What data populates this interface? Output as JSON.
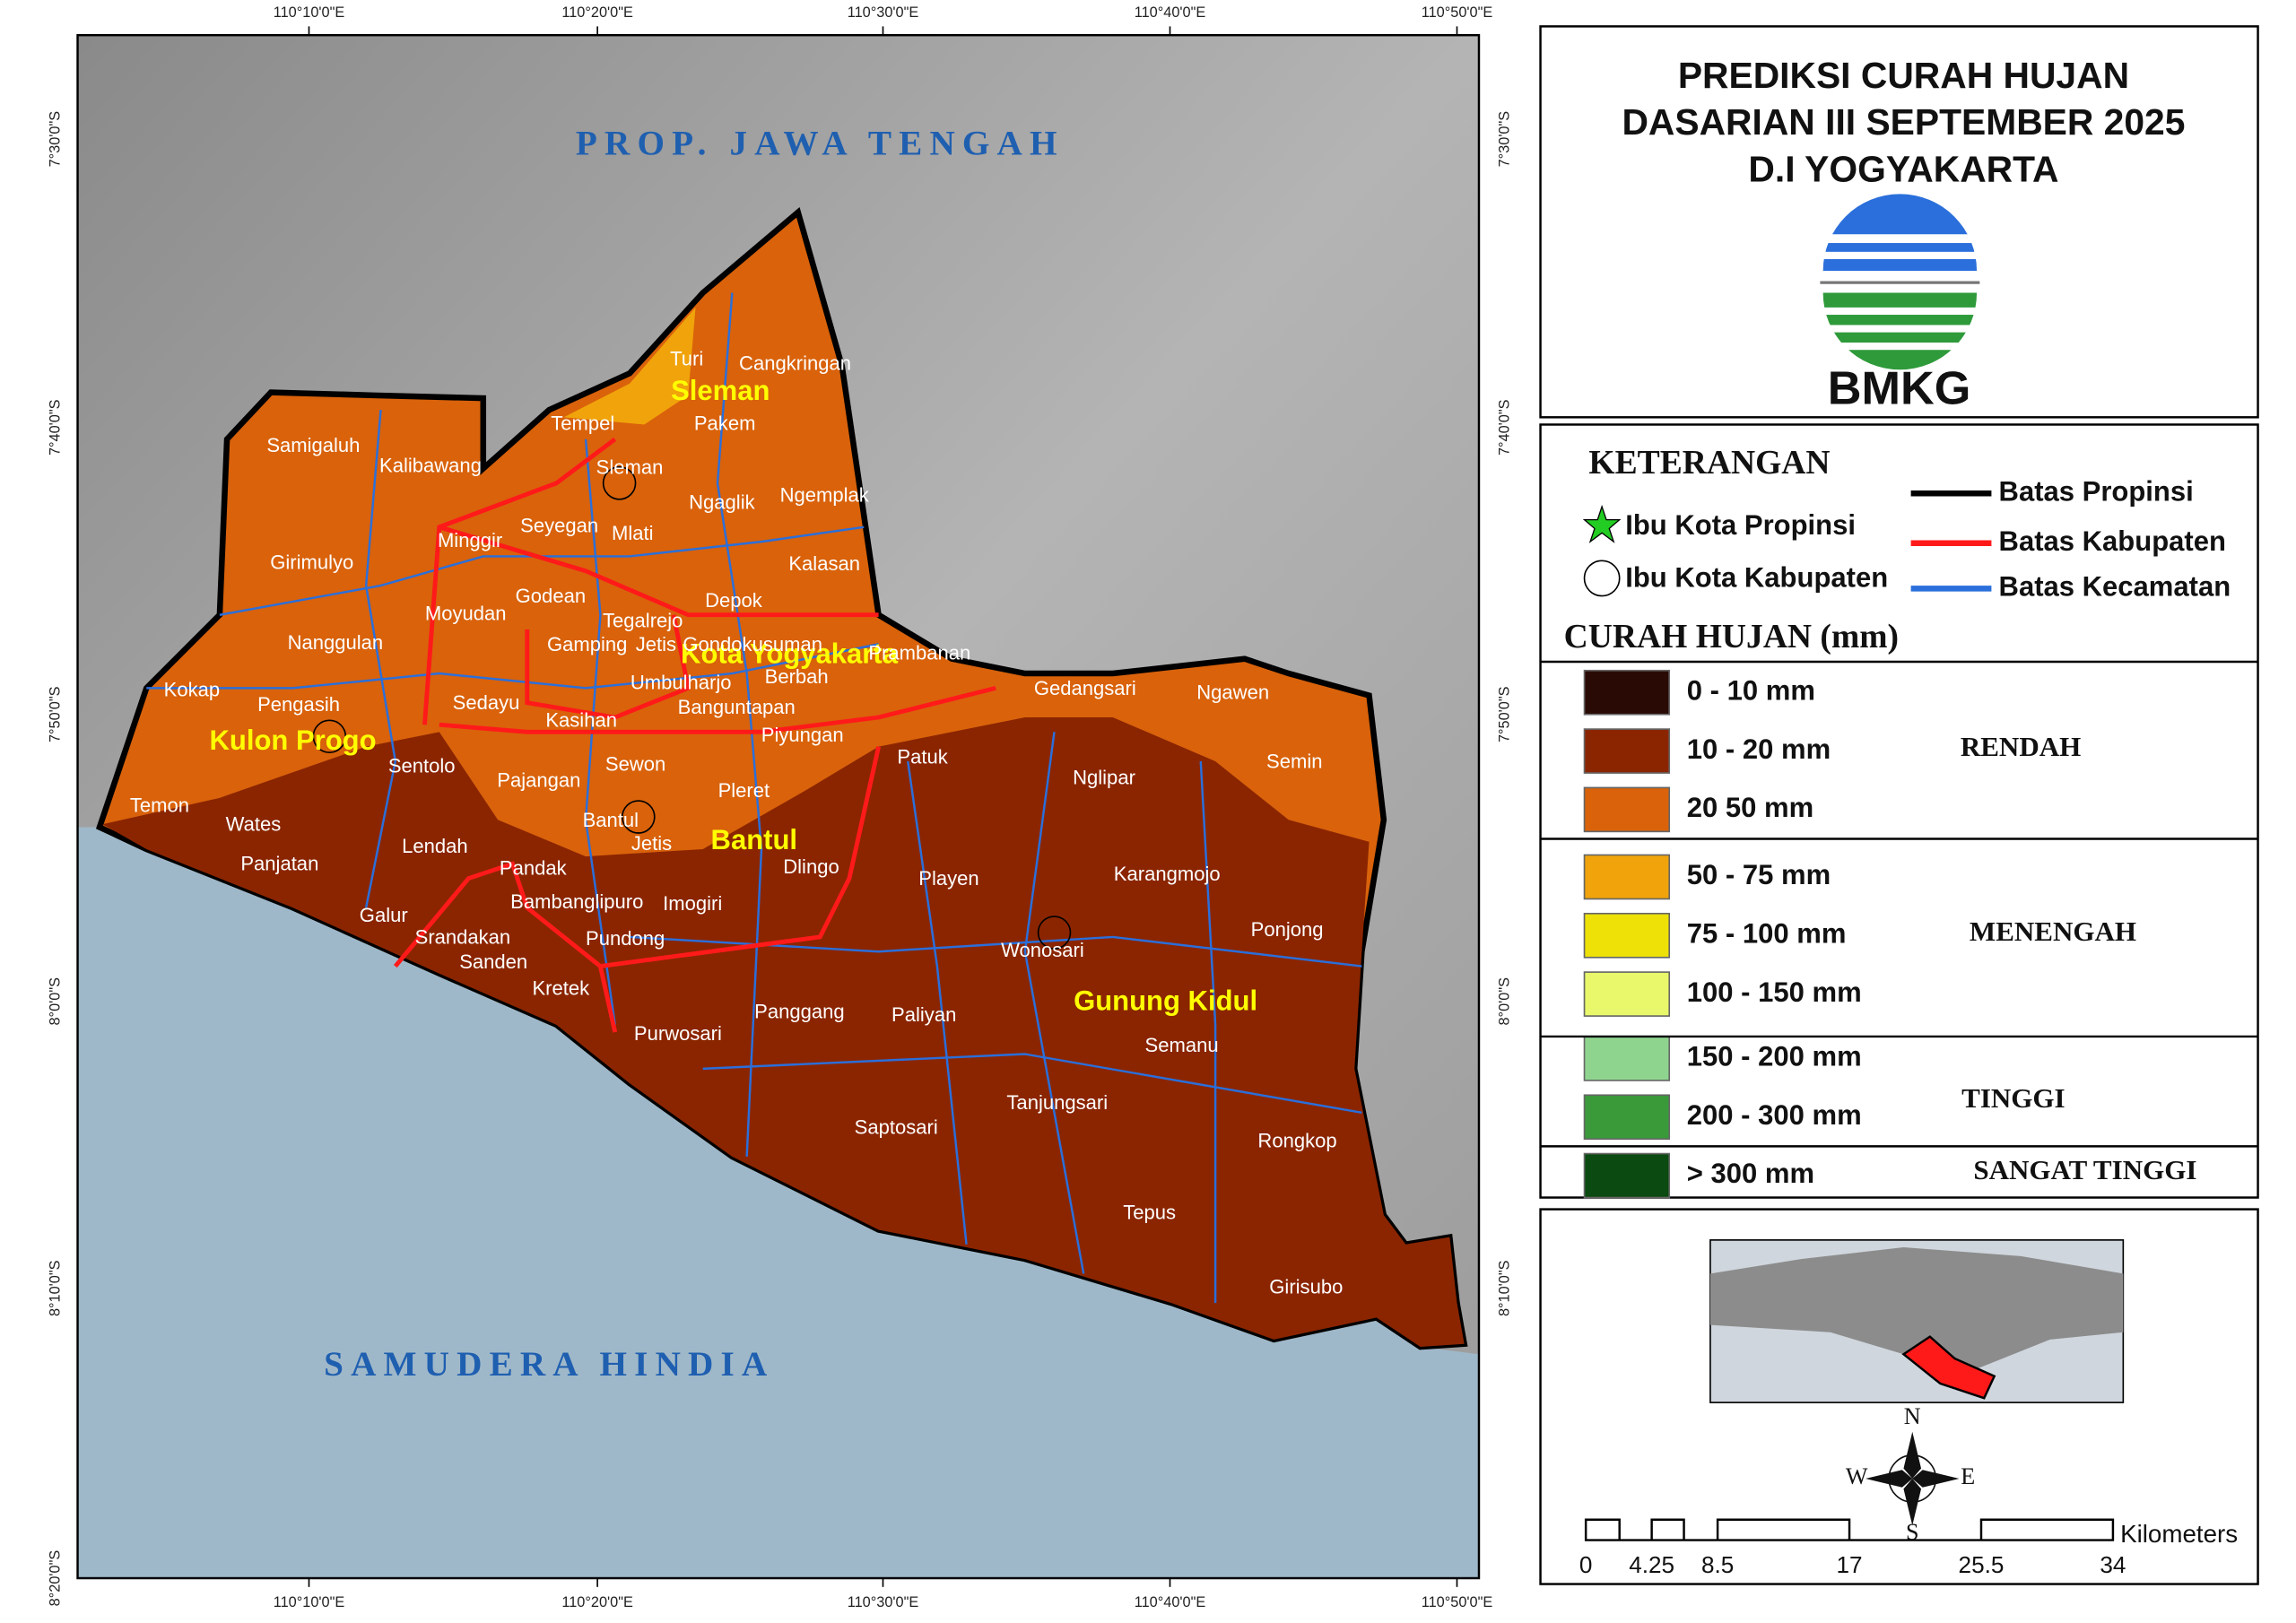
{
  "map": {
    "title_lines": [
      "PREDIKSI CURAH HUJAN",
      "DASARIAN III SEPTEMBER 2025",
      "D.I YOGYAKARTA"
    ],
    "logo_text": "BMKG",
    "region_labels": [
      "PROP. JAWA TENGAH",
      "SAMUDERA HINDIA"
    ],
    "regency_labels": [
      "Sleman",
      "Kota Yogyakarta",
      "Kulon Progo",
      "Bantul",
      "Gunung Kidul"
    ],
    "districts": [
      "Samigaluh",
      "Kalibawang",
      "Girimulyo",
      "Nanggulan",
      "Kokap",
      "Pengasih",
      "Sentolo",
      "Temon",
      "Wates",
      "Panjatan",
      "Lendah",
      "Galur",
      "Minggir",
      "Moyudan",
      "Sedayu",
      "Seyegan",
      "Mlati",
      "Godean",
      "Gamping",
      "Tegalrejo",
      "Jetis",
      "Gondokusuman",
      "Kasihan",
      "Umbulharjo",
      "Banguntapan",
      "Berbah",
      "Depok",
      "Kalasan",
      "Ngemplak",
      "Ngaglik",
      "Sleman",
      "Tempel",
      "Turi",
      "Pakem",
      "Cangkringan",
      "Prambanan",
      "Pajangan",
      "Sewon",
      "Piyungan",
      "Pleret",
      "Bantul",
      "Jetis",
      "Pandak",
      "Bambanglipuro",
      "Imogiri",
      "Pundong",
      "Srandakan",
      "Sanden",
      "Kretek",
      "Dlingo",
      "Patuk",
      "Gedangsari",
      "Ngawen",
      "Semin",
      "Nglipar",
      "Playen",
      "Karangmojo",
      "Ponjong",
      "Wonosari",
      "Purwosari",
      "Panggang",
      "Paliyan",
      "Semanu",
      "Saptosari",
      "Tanjungsari",
      "Rongkop",
      "Tepus",
      "Girisubo"
    ],
    "longitude_labels": [
      "110°10'0\"E",
      "110°20'0\"E",
      "110°30'0\"E",
      "110°40'0\"E",
      "110°50'0\"E"
    ],
    "latitude_labels": [
      "7°30'0\"S",
      "7°40'0\"S",
      "7°50'0\"S",
      "8°0'0\"S",
      "8°10'0\"S",
      "8°20'0\"S"
    ],
    "legend": {
      "title": "KETERANGAN",
      "symbols": [
        "Ibu Kota Propinsi",
        "Ibu Kota Kabupaten"
      ],
      "lines": [
        {
          "label": "Batas Propinsi",
          "color": "#000000"
        },
        {
          "label": "Batas Kabupaten",
          "color": "#ff1a1a"
        },
        {
          "label": "Batas Kecamatan",
          "color": "#2a6fdb"
        }
      ],
      "rain_title": "CURAH HUJAN (mm)",
      "classes": [
        {
          "label": "0 - 10 mm",
          "color": "#2a0a04"
        },
        {
          "label": "10 - 20 mm",
          "color": "#8b2500"
        },
        {
          "label": "20  50 mm",
          "color": "#d9620b"
        },
        {
          "label": "50 - 75 mm",
          "color": "#f0a30a"
        },
        {
          "label": "75 - 100 mm",
          "color": "#ede107"
        },
        {
          "label": "100 - 150 mm",
          "color": "#e8f86a"
        },
        {
          "label": "150 - 200 mm",
          "color": "#8fd48e"
        },
        {
          "label": "200 - 300 mm",
          "color": "#3a9a3a"
        },
        {
          "label": "> 300 mm",
          "color": "#0b4a10"
        }
      ],
      "groups": [
        "RENDAH",
        "MENENGAH",
        "TINGGI",
        "SANGAT TINGGI"
      ]
    },
    "compass": [
      "N",
      "E",
      "S",
      "W"
    ],
    "scale_labels": [
      "0",
      "4.25",
      "8.5",
      "17",
      "25.5",
      "34"
    ],
    "scale_unit": "Kilometers"
  }
}
